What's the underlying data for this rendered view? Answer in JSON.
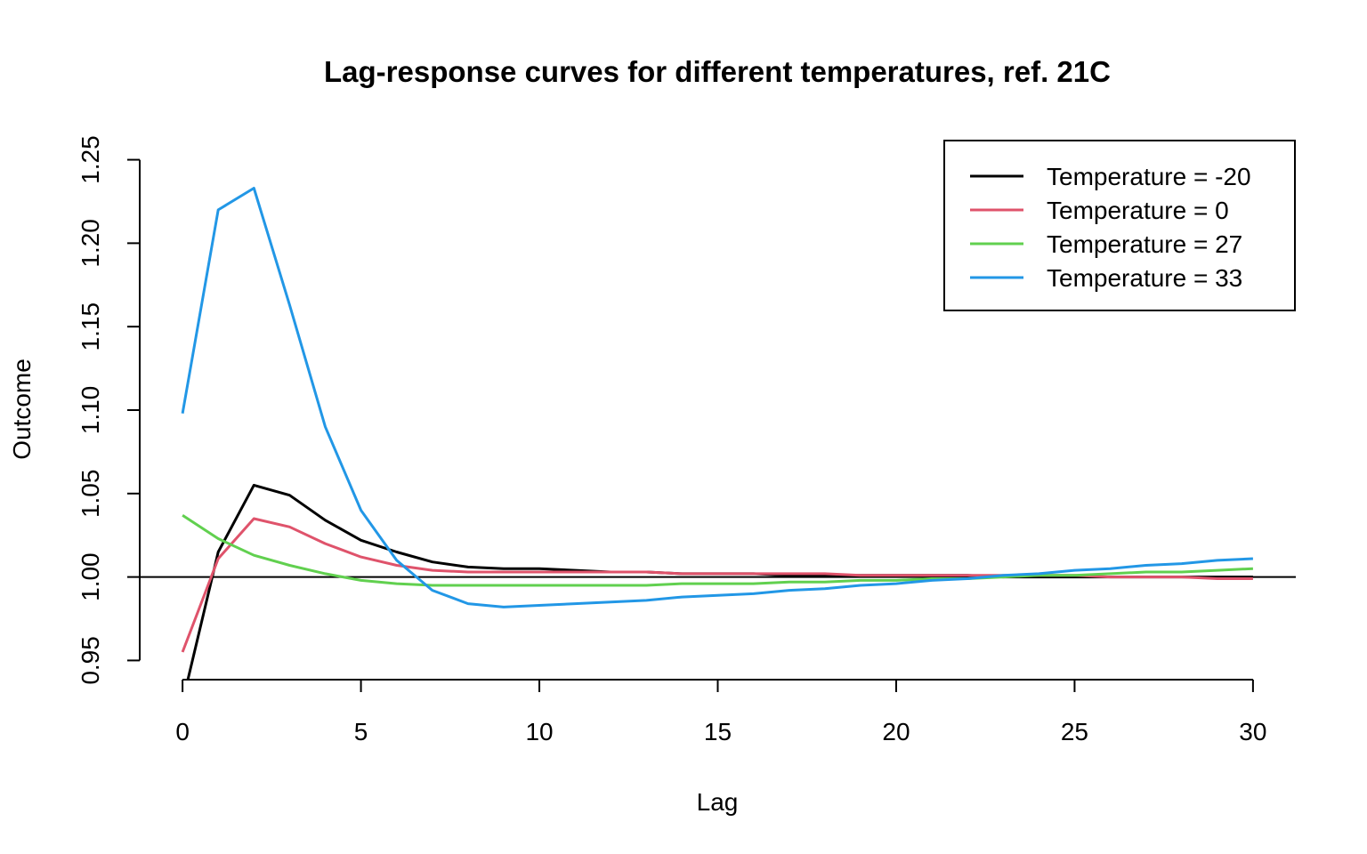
{
  "chart_data": {
    "type": "line",
    "title": "Lag-response curves for different temperatures, ref. 21C",
    "xlabel": "Lag",
    "ylabel": "Outcome",
    "xlim": [
      -1.2,
      31.2
    ],
    "ylim": [
      0.9385,
      1.2615
    ],
    "x_ticks": [
      "0",
      "5",
      "10",
      "15",
      "20",
      "25",
      "30"
    ],
    "y_ticks": [
      "0.95",
      "1.00",
      "1.05",
      "1.10",
      "1.15",
      "1.20",
      "1.25"
    ],
    "reference_line": 1.0,
    "legend_position": "top-right",
    "x": [
      0,
      1,
      2,
      3,
      4,
      5,
      6,
      7,
      8,
      9,
      10,
      11,
      12,
      13,
      14,
      15,
      16,
      17,
      18,
      19,
      20,
      21,
      22,
      23,
      24,
      25,
      26,
      27,
      28,
      29,
      30
    ],
    "series": [
      {
        "name": "Temperature = -20",
        "color": "#000000",
        "values": [
          0.925,
          1.015,
          1.055,
          1.049,
          1.034,
          1.022,
          1.015,
          1.009,
          1.006,
          1.005,
          1.005,
          1.004,
          1.003,
          1.003,
          1.002,
          1.002,
          1.002,
          1.001,
          1.001,
          1.001,
          1.001,
          1.001,
          1.001,
          1.0,
          1.0,
          1.0,
          1.0,
          1.0,
          1.0,
          1.0,
          1.0
        ]
      },
      {
        "name": "Temperature = 0",
        "color": "#DF536B",
        "values": [
          0.955,
          1.011,
          1.035,
          1.03,
          1.02,
          1.012,
          1.007,
          1.004,
          1.003,
          1.003,
          1.003,
          1.003,
          1.003,
          1.003,
          1.002,
          1.002,
          1.002,
          1.002,
          1.002,
          1.001,
          1.001,
          1.001,
          1.001,
          1.001,
          1.001,
          1.001,
          1.0,
          1.0,
          1.0,
          0.999,
          0.999
        ]
      },
      {
        "name": "Temperature = 27",
        "color": "#61D04F",
        "values": [
          1.037,
          1.023,
          1.013,
          1.007,
          1.002,
          0.998,
          0.996,
          0.995,
          0.995,
          0.995,
          0.995,
          0.995,
          0.995,
          0.995,
          0.996,
          0.996,
          0.996,
          0.997,
          0.997,
          0.998,
          0.998,
          0.999,
          0.999,
          1.0,
          1.001,
          1.001,
          1.002,
          1.003,
          1.003,
          1.004,
          1.005
        ]
      },
      {
        "name": "Temperature = 33",
        "color": "#2297E6",
        "values": [
          1.098,
          1.22,
          1.233,
          1.163,
          1.09,
          1.04,
          1.01,
          0.992,
          0.984,
          0.982,
          0.983,
          0.984,
          0.985,
          0.986,
          0.988,
          0.989,
          0.99,
          0.992,
          0.993,
          0.995,
          0.996,
          0.998,
          0.999,
          1.001,
          1.002,
          1.004,
          1.005,
          1.007,
          1.008,
          1.01,
          1.011
        ]
      }
    ]
  }
}
